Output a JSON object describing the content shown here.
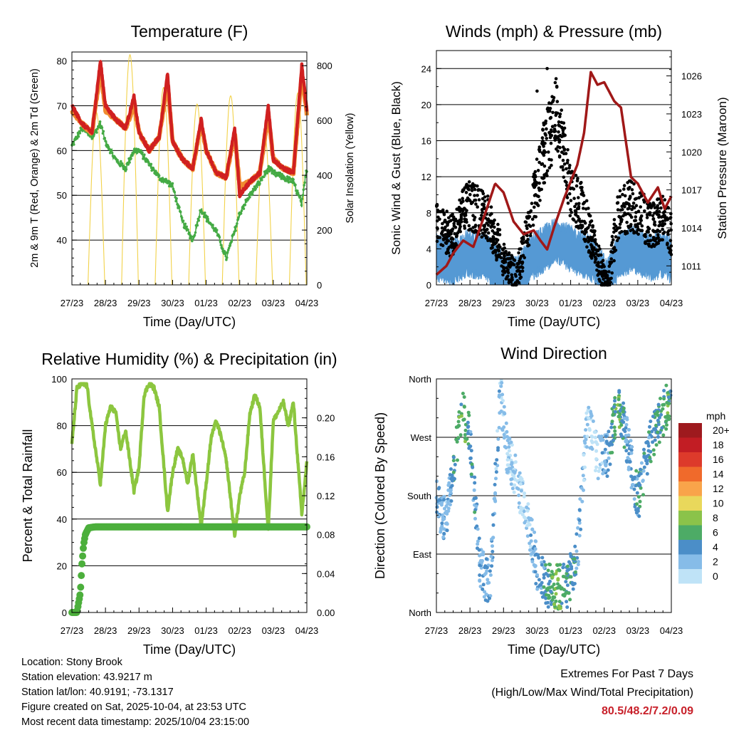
{
  "colors": {
    "temp_red": "#d02020",
    "temp_orange": "#f08c30",
    "dewpoint_green": "#44aa44",
    "solar_yellow": "#f2d24a",
    "wind_black": "#000000",
    "gust_blue": "#5599d4",
    "pressure_maroon": "#a01818",
    "rh_lightgreen": "#8cc63f",
    "precip_green": "#4caf3c"
  },
  "time_axis": {
    "label": "Time (Day/UTC)",
    "ticks": [
      "27/23",
      "28/23",
      "29/23",
      "30/23",
      "01/23",
      "02/23",
      "03/23",
      "04/23"
    ]
  },
  "chart_data": [
    {
      "id": "temperature",
      "type": "line",
      "title": "Temperature (F)",
      "xlabel": "Time (Day/UTC)",
      "ylabel": "2m & 9m T (Red, Orange) & 2m Td (Green)",
      "ylabel_right": "Solar Insolation (Yellow)",
      "ylim": [
        30,
        82
      ],
      "ylim_right": [
        0,
        850
      ],
      "yticks": [
        40,
        50,
        60,
        70,
        80
      ],
      "yticks_right": [
        0,
        200,
        400,
        600,
        800
      ],
      "x": [
        0,
        0.3,
        0.6,
        0.85,
        1.0,
        1.3,
        1.6,
        1.85,
        2.0,
        2.3,
        2.6,
        2.85,
        3.0,
        3.3,
        3.6,
        3.85,
        4.0,
        4.3,
        4.6,
        4.85,
        5.0,
        5.3,
        5.6,
        5.85,
        6.0,
        6.3,
        6.6,
        6.85,
        7.0
      ],
      "series": [
        {
          "name": "2m T",
          "color": "temp_red",
          "values": [
            70,
            66,
            64,
            80,
            70,
            67,
            65,
            72,
            64,
            60,
            63,
            77,
            62,
            58,
            56,
            67,
            60,
            55,
            54,
            65,
            50,
            53,
            55,
            70,
            58,
            56,
            55,
            79,
            69
          ]
        },
        {
          "name": "9m T",
          "color": "temp_orange",
          "values": [
            69,
            66,
            64,
            78,
            69,
            67,
            65,
            70,
            64,
            60,
            63,
            75,
            62,
            58,
            56,
            66,
            60,
            55,
            54,
            64,
            52,
            53,
            55,
            68,
            58,
            56,
            55,
            77,
            68
          ]
        },
        {
          "name": "2m Td",
          "color": "dewpoint_green",
          "values": [
            61,
            65,
            63,
            66,
            62,
            58,
            56,
            60,
            60,
            57,
            54,
            53,
            52,
            44,
            40,
            47,
            45,
            42,
            36,
            42,
            46,
            50,
            53,
            56,
            55,
            54,
            53,
            48,
            56
          ]
        }
      ],
      "solar": {
        "name": "Solar Insolation",
        "color": "solar_yellow",
        "daily_peak_W": [
          0,
          630,
          840,
          720,
          660,
          690,
          560,
          700
        ],
        "peak_offset_day": 0.73
      }
    },
    {
      "id": "winds",
      "type": "scatter",
      "title": "Winds (mph) & Pressure (mb)",
      "xlabel": "Time (Day/UTC)",
      "ylabel": "Sonic Wind & Gust (Blue, Black)",
      "ylabel_right": "Station Pressure (Maroon)",
      "ylim": [
        0,
        26
      ],
      "ylim_right": [
        1009.5,
        1028
      ],
      "yticks": [
        0,
        4,
        8,
        12,
        16,
        20,
        24
      ],
      "yticks_right": [
        1011,
        1014,
        1017,
        1020,
        1023,
        1026
      ],
      "gust_profile": {
        "x": [
          0,
          0.5,
          0.9,
          1.5,
          2.1,
          2.4,
          2.8,
          3.2,
          3.6,
          4.0,
          4.3,
          4.6,
          5.1,
          5.4,
          5.8,
          6.4,
          6.8,
          7.0
        ],
        "values": [
          7,
          6,
          9,
          8,
          3,
          2,
          8,
          14,
          18,
          10,
          9,
          6,
          1,
          8,
          9,
          7,
          8,
          6
        ]
      },
      "wind_profile": {
        "x": [
          0,
          0.5,
          0.9,
          1.5,
          2.1,
          2.4,
          2.8,
          3.2,
          3.6,
          4.0,
          4.3,
          4.6,
          5.1,
          5.4,
          5.8,
          6.4,
          6.8,
          7.0
        ],
        "values": [
          3,
          2.5,
          3.5,
          3,
          1,
          0.5,
          3,
          4,
          5,
          4,
          3.5,
          3,
          0.3,
          3,
          4,
          3,
          3.5,
          2.5
        ]
      },
      "pressure": {
        "name": "Station Pressure",
        "color": "pressure_maroon",
        "x": [
          0,
          0.3,
          0.5,
          0.8,
          1.1,
          1.5,
          1.75,
          2.0,
          2.3,
          2.6,
          2.9,
          3.1,
          3.3,
          3.5,
          3.8,
          4.2,
          4.4,
          4.6,
          4.8,
          5.0,
          5.3,
          5.5,
          5.8,
          6.0,
          6.3,
          6.6,
          6.8,
          7.0
        ],
        "values": [
          1010.3,
          1011,
          1012,
          1013,
          1012.5,
          1015.5,
          1017.5,
          1016.8,
          1014.5,
          1013.5,
          1013.8,
          1013.0,
          1012.3,
          1014,
          1016.3,
          1019,
          1021.5,
          1026.3,
          1025.3,
          1025.5,
          1024,
          1023.5,
          1018,
          1017.5,
          1016,
          1017.2,
          1015.5,
          1016.5
        ]
      },
      "max_wind": 7.2
    },
    {
      "id": "humidity",
      "type": "line",
      "title": "Relative Humidity (%) & Precipitation (in)",
      "xlabel": "Time (Day/UTC)",
      "ylabel": "Percent & Total Rainfall",
      "ylim": [
        0,
        100
      ],
      "ylim_right": [
        0,
        0.24
      ],
      "yticks": [
        0,
        20,
        40,
        60,
        80,
        100
      ],
      "yticks_right": [
        0.0,
        0.04,
        0.08,
        0.12,
        0.16,
        0.2
      ],
      "yticks_right_labels": [
        "0.00",
        "0.04",
        "0.08",
        "0.12",
        "0.16",
        "0.20"
      ],
      "rh": {
        "name": "Relative Humidity",
        "color": "rh_lightgreen",
        "x": [
          0,
          0.15,
          0.3,
          0.45,
          0.6,
          0.85,
          1.0,
          1.15,
          1.3,
          1.45,
          1.6,
          1.85,
          2.0,
          2.15,
          2.3,
          2.45,
          2.6,
          2.85,
          3.0,
          3.15,
          3.3,
          3.45,
          3.6,
          3.85,
          4.0,
          4.15,
          4.3,
          4.45,
          4.6,
          4.85,
          5.0,
          5.15,
          5.3,
          5.45,
          5.6,
          5.85,
          6.0,
          6.15,
          6.3,
          6.45,
          6.6,
          6.85,
          7.0
        ],
        "values": [
          72,
          96,
          98,
          97,
          80,
          55,
          80,
          88,
          86,
          70,
          78,
          52,
          62,
          93,
          98,
          96,
          88,
          43,
          60,
          70,
          66,
          55,
          68,
          37,
          55,
          75,
          82,
          75,
          65,
          33,
          50,
          60,
          85,
          93,
          88,
          35,
          82,
          86,
          90,
          80,
          90,
          42,
          64
        ]
      },
      "precip": {
        "name": "Total Precipitation",
        "color": "precip_green",
        "x": [
          0,
          0.15,
          0.25,
          0.3,
          0.35,
          0.4,
          0.5,
          0.7,
          7.0
        ],
        "values": [
          0,
          0,
          0.02,
          0.05,
          0.07,
          0.08,
          0.087,
          0.088,
          0.088
        ]
      },
      "total_precip": 0.09
    },
    {
      "id": "direction",
      "type": "scatter",
      "title": "Wind Direction",
      "xlabel": "Time (Day/UTC)",
      "ylabel": "Direction (Colored By Speed)",
      "ylim": [
        0,
        360
      ],
      "yticks": [
        0,
        90,
        180,
        270,
        360
      ],
      "ytick_labels": [
        "North",
        "East",
        "South",
        "West",
        "North"
      ],
      "track": {
        "x": [
          0,
          0.3,
          0.6,
          0.8,
          1.0,
          1.3,
          1.6,
          1.9,
          2.1,
          2.4,
          2.6,
          3.0,
          3.3,
          3.6,
          3.9,
          4.2,
          4.5,
          4.8,
          5.1,
          5.4,
          5.7,
          6.0,
          6.3,
          6.6,
          6.9,
          7.0
        ],
        "dir": [
          170,
          140,
          260,
          310,
          270,
          70,
          40,
          340,
          250,
          200,
          170,
          70,
          40,
          40,
          40,
          90,
          300,
          240,
          240,
          330,
          260,
          170,
          250,
          290,
          320,
          330
        ],
        "speed": [
          3,
          2,
          5,
          7,
          4,
          3,
          3,
          2,
          1,
          1,
          1,
          3,
          5,
          7,
          5,
          4,
          1,
          1,
          3,
          7,
          3,
          4,
          4,
          5,
          6,
          4
        ]
      },
      "legend": {
        "title": "mph",
        "labels": [
          "20+",
          "18",
          "16",
          "14",
          "12",
          "10",
          "8",
          "6",
          "4",
          "2",
          "0"
        ],
        "colors": [
          "#9e1a1e",
          "#c21d24",
          "#dd3a2b",
          "#f06a2b",
          "#f9a44a",
          "#e9d85b",
          "#8bc34a",
          "#4dab66",
          "#4b8ec8",
          "#86bce8",
          "#bfe3f7"
        ]
      }
    }
  ],
  "info": {
    "location": "Location: Stony Brook",
    "elevation": "Station elevation: 43.9217 m",
    "latlon": "Station lat/lon: 40.9191; -73.1317",
    "created": "Figure created on Sat, 2025-10-04, at 23:53 UTC",
    "recent": "Most recent data timestamp: 2025/10/04 23:15:00"
  },
  "extremes": {
    "title": "Extremes For Past 7 Days",
    "subtitle": "(High/Low/Max Wind/Total Precipitation)",
    "values": "80.5/48.2/7.2/0.09"
  }
}
